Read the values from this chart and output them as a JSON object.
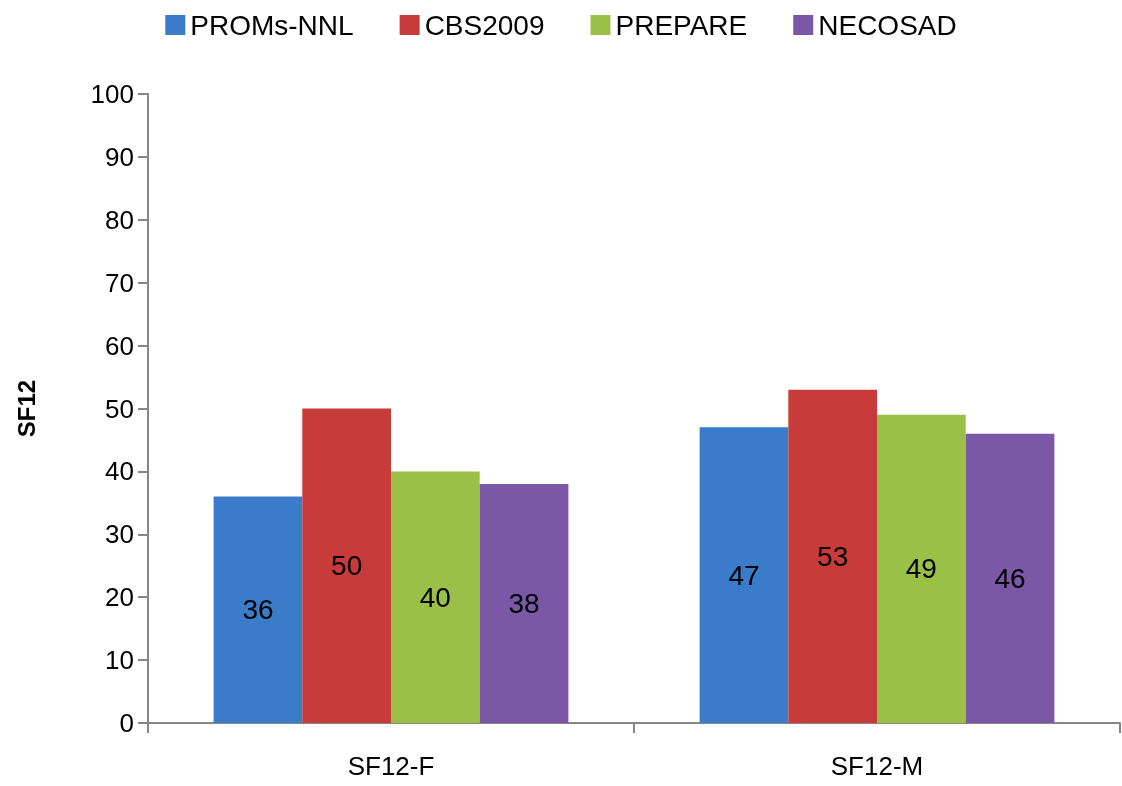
{
  "chart_data": {
    "type": "bar",
    "ylabel": "SF12",
    "categories": [
      "SF12-F",
      "SF12-M"
    ],
    "series": [
      {
        "name": "PROMs-NNL",
        "color": "#3a7cc9",
        "values": [
          36,
          47
        ]
      },
      {
        "name": "CBS2009",
        "color": "#c73b3a",
        "values": [
          50,
          53
        ]
      },
      {
        "name": "PREPARE",
        "color": "#9bc048",
        "values": [
          40,
          49
        ]
      },
      {
        "name": "NECOSAD",
        "color": "#7b58a6",
        "values": [
          38,
          46
        ]
      }
    ],
    "ylim": [
      0,
      100
    ],
    "yticks": [
      0,
      10,
      20,
      30,
      40,
      50,
      60,
      70,
      80,
      90,
      100
    ],
    "data_labels": true,
    "grid": false,
    "legend": "top"
  }
}
